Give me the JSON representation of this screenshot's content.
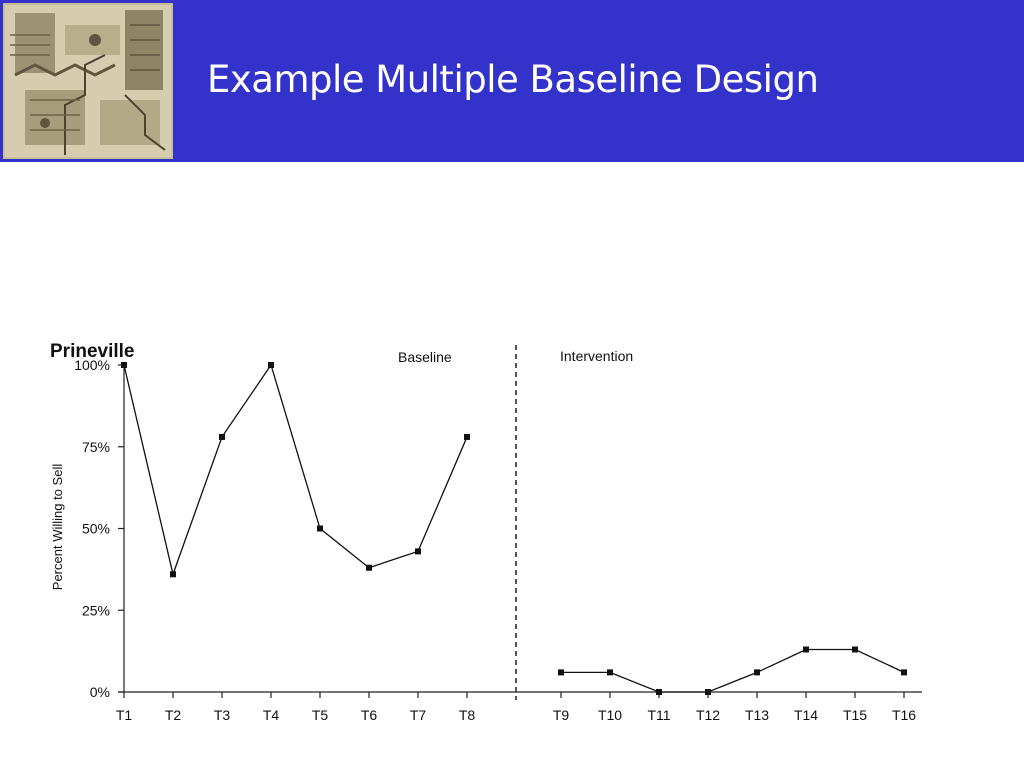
{
  "slide": {
    "title": "Example Multiple Baseline Design",
    "header_color": "#3333cc"
  },
  "chart_data": {
    "type": "line",
    "title": "Prineville",
    "ylabel": "Percent Willing to Sell",
    "xlabel": "",
    "ylim": [
      0,
      100
    ],
    "y_ticks": [
      "0%",
      "25%",
      "50%",
      "75%",
      "100%"
    ],
    "phases": [
      "Baseline",
      "Intervention"
    ],
    "phase_change_after": "T8",
    "categories": [
      "T1",
      "T2",
      "T3",
      "T4",
      "T5",
      "T6",
      "T7",
      "T8",
      "T9",
      "T10",
      "T11",
      "T12",
      "T13",
      "T14",
      "T15",
      "T16"
    ],
    "series": [
      {
        "phase": "Baseline",
        "x": [
          "T1",
          "T2",
          "T3",
          "T4",
          "T5",
          "T6",
          "T7",
          "T8"
        ],
        "values": [
          100,
          36,
          78,
          100,
          50,
          38,
          43,
          78
        ]
      },
      {
        "phase": "Intervention",
        "x": [
          "T9",
          "T10",
          "T11",
          "T12",
          "T13",
          "T14",
          "T15",
          "T16"
        ],
        "values": [
          6,
          6,
          0,
          0,
          6,
          13,
          13,
          6
        ]
      }
    ],
    "grid": false
  }
}
